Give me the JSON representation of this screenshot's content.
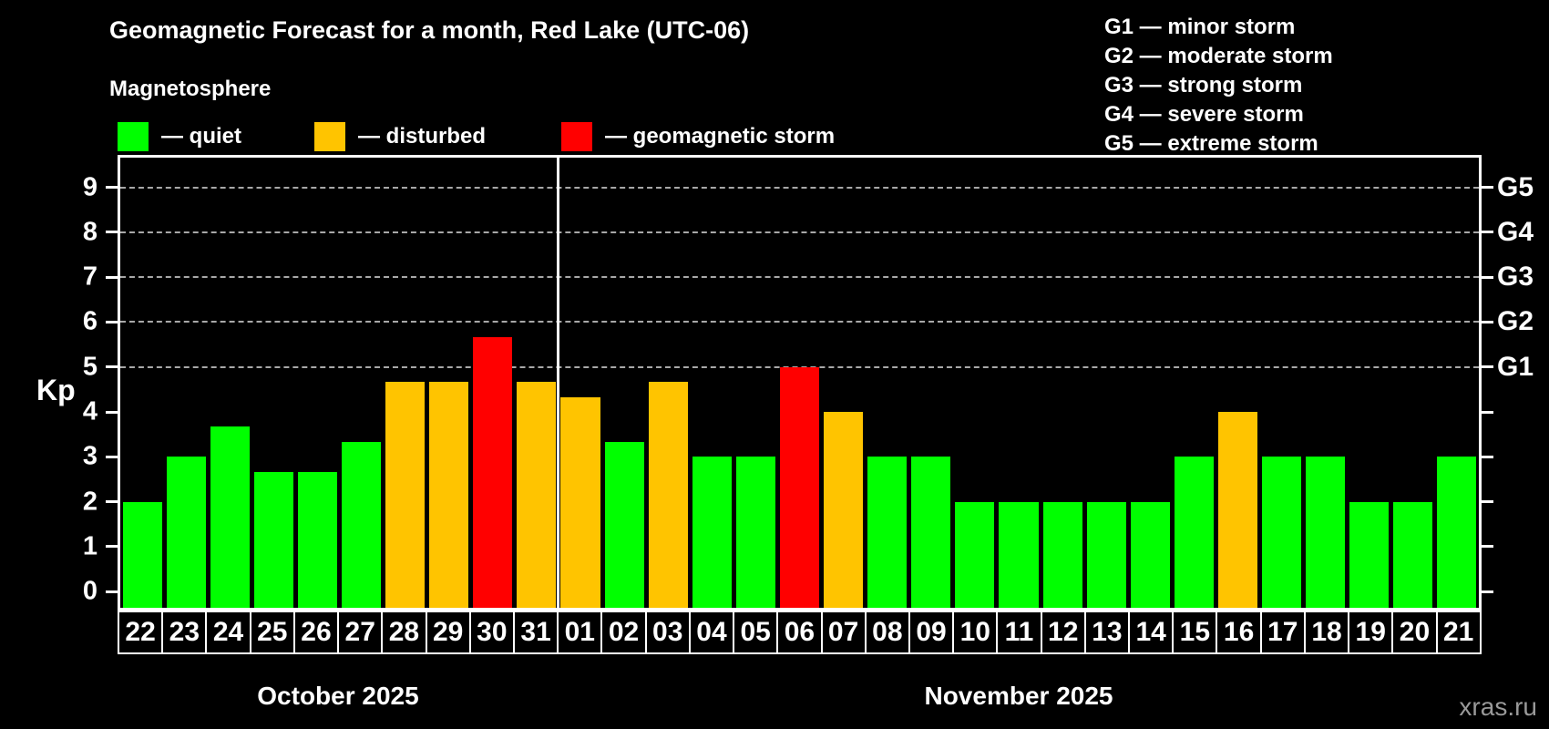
{
  "header": {
    "title": "Geomagnetic Forecast for a month, Red Lake (UTC-06)"
  },
  "magnetosphere_legend": {
    "title": "Magnetosphere",
    "items": [
      {
        "label": "— quiet",
        "status": "quiet",
        "color": "#00ff00"
      },
      {
        "label": "— disturbed",
        "status": "disturbed",
        "color": "#ffc400"
      },
      {
        "label": "— geomagnetic storm",
        "status": "storm",
        "color": "#ff0000"
      }
    ]
  },
  "g_scale_legend": [
    "G1 — minor storm",
    "G2 — moderate storm",
    "G3 — strong storm",
    "G4 — severe storm",
    "G5 — extreme storm"
  ],
  "watermark": "xras.ru",
  "chart_data": {
    "type": "bar",
    "title": "Geomagnetic Forecast for a month, Red Lake (UTC-06)",
    "ylabel": "Kp",
    "ylim": [
      -0.36,
      9.66
    ],
    "yticks": [
      0,
      1,
      2,
      3,
      4,
      5,
      6,
      7,
      8,
      9
    ],
    "gridlines_at": [
      5,
      6,
      7,
      8,
      9
    ],
    "grid": "horizontal dashed lines at Kp 5-9 only",
    "legend_position": "top",
    "right_axis": [
      {
        "kp": 5,
        "label": "G1"
      },
      {
        "kp": 6,
        "label": "G2"
      },
      {
        "kp": 7,
        "label": "G3"
      },
      {
        "kp": 8,
        "label": "G4"
      },
      {
        "kp": 9,
        "label": "G5"
      }
    ],
    "status_colors": {
      "quiet": "#00ff00",
      "disturbed": "#ffc400",
      "storm": "#ff0000"
    },
    "months": [
      {
        "label": "October 2025",
        "count": 10
      },
      {
        "label": "November 2025",
        "count": 21
      }
    ],
    "bars": [
      {
        "day": "22",
        "month": "October 2025",
        "kp": 2.0,
        "status": "quiet"
      },
      {
        "day": "23",
        "month": "October 2025",
        "kp": 3.0,
        "status": "quiet"
      },
      {
        "day": "24",
        "month": "October 2025",
        "kp": 3.67,
        "status": "quiet"
      },
      {
        "day": "25",
        "month": "October 2025",
        "kp": 2.67,
        "status": "quiet"
      },
      {
        "day": "26",
        "month": "October 2025",
        "kp": 2.67,
        "status": "quiet"
      },
      {
        "day": "27",
        "month": "October 2025",
        "kp": 3.33,
        "status": "quiet"
      },
      {
        "day": "28",
        "month": "October 2025",
        "kp": 4.67,
        "status": "disturbed"
      },
      {
        "day": "29",
        "month": "October 2025",
        "kp": 4.67,
        "status": "disturbed"
      },
      {
        "day": "30",
        "month": "October 2025",
        "kp": 5.67,
        "status": "storm"
      },
      {
        "day": "31",
        "month": "October 2025",
        "kp": 4.67,
        "status": "disturbed"
      },
      {
        "day": "01",
        "month": "November 2025",
        "kp": 4.33,
        "status": "disturbed"
      },
      {
        "day": "02",
        "month": "November 2025",
        "kp": 3.33,
        "status": "quiet"
      },
      {
        "day": "03",
        "month": "November 2025",
        "kp": 4.67,
        "status": "disturbed"
      },
      {
        "day": "04",
        "month": "November 2025",
        "kp": 3.0,
        "status": "quiet"
      },
      {
        "day": "05",
        "month": "November 2025",
        "kp": 3.0,
        "status": "quiet"
      },
      {
        "day": "06",
        "month": "November 2025",
        "kp": 5.0,
        "status": "storm"
      },
      {
        "day": "07",
        "month": "November 2025",
        "kp": 4.0,
        "status": "disturbed"
      },
      {
        "day": "08",
        "month": "November 2025",
        "kp": 3.0,
        "status": "quiet"
      },
      {
        "day": "09",
        "month": "November 2025",
        "kp": 3.0,
        "status": "quiet"
      },
      {
        "day": "10",
        "month": "November 2025",
        "kp": 2.0,
        "status": "quiet"
      },
      {
        "day": "11",
        "month": "November 2025",
        "kp": 2.0,
        "status": "quiet"
      },
      {
        "day": "12",
        "month": "November 2025",
        "kp": 2.0,
        "status": "quiet"
      },
      {
        "day": "13",
        "month": "November 2025",
        "kp": 2.0,
        "status": "quiet"
      },
      {
        "day": "14",
        "month": "November 2025",
        "kp": 2.0,
        "status": "quiet"
      },
      {
        "day": "15",
        "month": "November 2025",
        "kp": 3.0,
        "status": "quiet"
      },
      {
        "day": "16",
        "month": "November 2025",
        "kp": 4.0,
        "status": "disturbed"
      },
      {
        "day": "17",
        "month": "November 2025",
        "kp": 3.0,
        "status": "quiet"
      },
      {
        "day": "18",
        "month": "November 2025",
        "kp": 3.0,
        "status": "quiet"
      },
      {
        "day": "19",
        "month": "November 2025",
        "kp": 2.0,
        "status": "quiet"
      },
      {
        "day": "20",
        "month": "November 2025",
        "kp": 2.0,
        "status": "quiet"
      },
      {
        "day": "21",
        "month": "November 2025",
        "kp": 3.0,
        "status": "quiet"
      }
    ]
  }
}
